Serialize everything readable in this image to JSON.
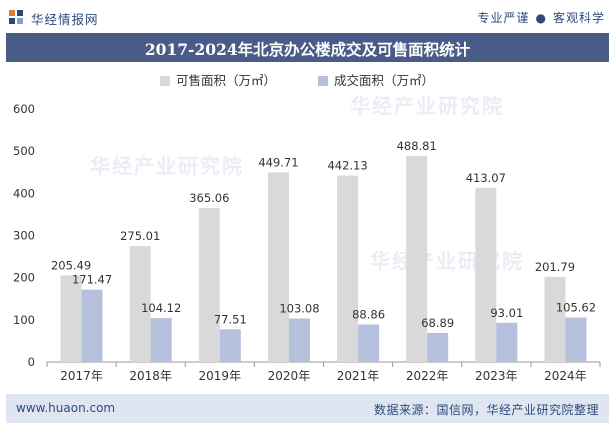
{
  "header": {
    "site_name": "华经情报网",
    "tagline_left": "专业严谨",
    "tagline_dot": "●",
    "tagline_right": "客观科学"
  },
  "title": "2017-2024年北京办公楼成交及可售面积统计",
  "footer": {
    "url": "www.huaon.com",
    "source": "数据来源：国信网，华经产业研究院整理"
  },
  "watermarks": [
    "华经产业研究院",
    "华经产业研究院",
    "华经产业研究院"
  ],
  "colors": {
    "title_bar": "#4b5b87",
    "series_available": "#d9d9d9",
    "series_transacted": "#b4c0dc",
    "footer_bg": "#dfe6f2"
  },
  "chart_data": {
    "type": "bar",
    "title": "2017-2024年北京办公楼成交及可售面积统计",
    "categories": [
      "2017年",
      "2018年",
      "2019年",
      "2020年",
      "2021年",
      "2022年",
      "2023年",
      "2024年"
    ],
    "series": [
      {
        "name": "可售面积（万㎡）",
        "values": [
          205.49,
          275.01,
          365.06,
          449.71,
          442.13,
          488.81,
          413.07,
          201.79
        ]
      },
      {
        "name": "成交面积（万㎡）",
        "values": [
          171.47,
          104.12,
          77.51,
          103.08,
          88.86,
          68.89,
          93.01,
          105.62
        ]
      }
    ],
    "ylim": [
      0,
      600
    ],
    "yticks": [
      0,
      100,
      200,
      300,
      400,
      500,
      600
    ],
    "xlabel": "",
    "ylabel": "",
    "legend_position": "top-center",
    "grid": false
  }
}
